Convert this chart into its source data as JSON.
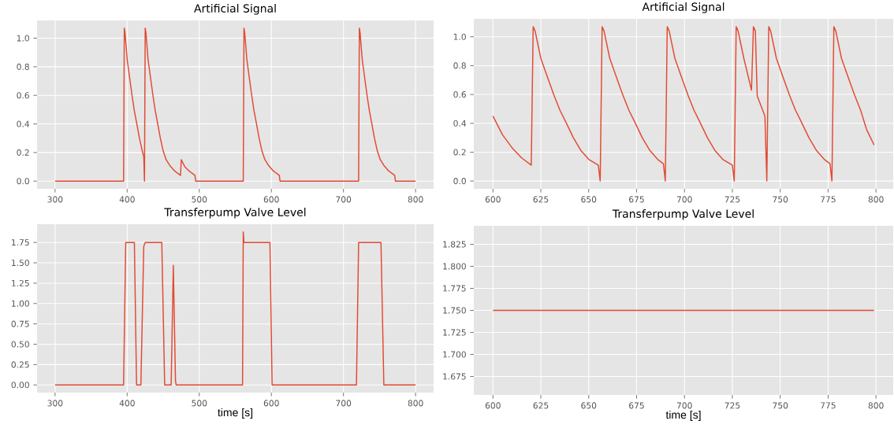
{
  "chart_data": [
    {
      "type": "line",
      "title": "Artificial Signal",
      "xlim": [
        275,
        825
      ],
      "ylim": [
        -0.054,
        1.124
      ],
      "grid": true,
      "xticks": [
        300,
        400,
        500,
        600,
        700,
        800
      ],
      "yticks": [
        {
          "value": 0,
          "label": "0.0"
        },
        {
          "value": 0.2,
          "label": "0.2"
        },
        {
          "value": 0.4,
          "label": "0.4"
        },
        {
          "value": 0.6,
          "label": "0.6"
        },
        {
          "value": 0.8,
          "label": "0.8"
        },
        {
          "value": 1,
          "label": "1.0"
        }
      ],
      "series": [
        {
          "color": "#e24a33",
          "x": [
            300,
            395,
            396,
            397,
            400,
            404,
            407,
            410,
            413,
            417,
            421,
            423,
            424,
            425,
            426,
            429,
            433,
            436,
            439,
            442,
            446,
            450,
            454,
            459,
            465,
            470,
            474,
            475,
            480,
            485,
            490,
            494,
            495,
            561,
            562,
            563,
            566,
            570,
            573,
            576,
            579,
            583,
            587,
            591,
            596,
            602,
            607,
            611,
            612,
            721,
            722,
            723,
            726,
            730,
            733,
            736,
            739,
            743,
            747,
            751,
            756,
            762,
            767,
            771,
            772,
            800
          ],
          "values": [
            0,
            0,
            1.07,
            1.04,
            0.85,
            0.7,
            0.59,
            0.49,
            0.41,
            0.3,
            0.21,
            0.17,
            0,
            1.07,
            1.04,
            0.85,
            0.7,
            0.59,
            0.49,
            0.41,
            0.3,
            0.21,
            0.15,
            0.11,
            0.075,
            0.055,
            0.04,
            0.15,
            0.1,
            0.075,
            0.055,
            0.04,
            0,
            0,
            1.07,
            1.04,
            0.85,
            0.7,
            0.59,
            0.49,
            0.41,
            0.3,
            0.21,
            0.15,
            0.11,
            0.075,
            0.055,
            0.04,
            0,
            0,
            1.07,
            1.04,
            0.85,
            0.7,
            0.59,
            0.49,
            0.41,
            0.3,
            0.21,
            0.15,
            0.11,
            0.075,
            0.055,
            0.04,
            0,
            0
          ]
        }
      ]
    },
    {
      "type": "line",
      "title": "Artificial Signal",
      "xlim": [
        590,
        809
      ],
      "ylim": [
        -0.054,
        1.124
      ],
      "grid": true,
      "xticks": [
        600,
        625,
        650,
        675,
        700,
        725,
        750,
        775,
        800
      ],
      "yticks": [
        {
          "value": 0,
          "label": "0.0"
        },
        {
          "value": 0.2,
          "label": "0.2"
        },
        {
          "value": 0.4,
          "label": "0.4"
        },
        {
          "value": 0.6,
          "label": "0.6"
        },
        {
          "value": 0.8,
          "label": "0.8"
        },
        {
          "value": 1,
          "label": "1.0"
        }
      ],
      "series": [
        {
          "color": "#e24a33",
          "x": [
            600,
            605,
            610,
            615,
            620,
            621,
            622,
            625,
            629,
            632,
            635,
            638,
            642,
            646,
            650,
            655,
            656,
            657,
            658,
            661,
            665,
            668,
            671,
            674,
            678,
            682,
            686,
            689,
            690,
            691,
            692,
            695,
            699,
            702,
            705,
            708,
            712,
            716,
            720,
            725,
            726,
            727,
            728,
            731,
            735,
            736,
            737,
            738,
            742,
            743,
            744,
            745,
            748,
            752,
            755,
            758,
            761,
            765,
            769,
            773,
            776,
            777,
            778,
            779,
            782,
            786,
            789,
            792,
            795,
            799
          ],
          "values": [
            0.45,
            0.32,
            0.23,
            0.16,
            0.11,
            1.07,
            1.04,
            0.85,
            0.7,
            0.59,
            0.49,
            0.41,
            0.3,
            0.21,
            0.15,
            0.11,
            0,
            1.07,
            1.04,
            0.85,
            0.7,
            0.59,
            0.49,
            0.41,
            0.3,
            0.21,
            0.15,
            0.12,
            0,
            1.07,
            1.04,
            0.85,
            0.7,
            0.59,
            0.49,
            0.41,
            0.3,
            0.21,
            0.15,
            0.11,
            0,
            1.07,
            1.04,
            0.85,
            0.63,
            1.07,
            1.04,
            0.59,
            0.45,
            0,
            1.07,
            1.04,
            0.85,
            0.7,
            0.59,
            0.49,
            0.41,
            0.3,
            0.21,
            0.15,
            0.12,
            0,
            1.07,
            1.04,
            0.85,
            0.7,
            0.59,
            0.49,
            0.36,
            0.25
          ]
        }
      ]
    },
    {
      "type": "line",
      "title": "Transferpump Valve Level",
      "xlabel": "time [s]",
      "xlim": [
        275,
        825
      ],
      "ylim": [
        -0.094,
        1.974
      ],
      "grid": true,
      "xticks": [
        300,
        400,
        500,
        600,
        700,
        800
      ],
      "yticks": [
        {
          "value": 0,
          "label": "0.00"
        },
        {
          "value": 0.25,
          "label": "0.25"
        },
        {
          "value": 0.5,
          "label": "0.50"
        },
        {
          "value": 0.75,
          "label": "0.75"
        },
        {
          "value": 1,
          "label": "1.00"
        },
        {
          "value": 1.25,
          "label": "1.25"
        },
        {
          "value": 1.5,
          "label": "1.50"
        },
        {
          "value": 1.75,
          "label": "1.75"
        }
      ],
      "series": [
        {
          "color": "#e24a33",
          "x": [
            300,
            395,
            398,
            410,
            413,
            419,
            423,
            425,
            448,
            452,
            461,
            464,
            467,
            468,
            560,
            561,
            562,
            598,
            601,
            718,
            721,
            752,
            756,
            800
          ],
          "values": [
            0,
            0,
            1.75,
            1.75,
            0,
            0,
            1.7,
            1.75,
            1.75,
            0,
            0,
            1.47,
            0.05,
            0,
            0,
            1.88,
            1.75,
            1.75,
            0,
            0,
            1.75,
            1.75,
            0,
            0
          ]
        }
      ]
    },
    {
      "type": "line",
      "title": "Transferpump Valve Level",
      "xlabel": "time [s]",
      "xlim": [
        590,
        809
      ],
      "ylim": [
        1.654,
        1.846
      ],
      "grid": true,
      "xticks": [
        600,
        625,
        650,
        675,
        700,
        725,
        750,
        775,
        800
      ],
      "yticks": [
        1.675,
        {
          "value": 1.7,
          "label": "1.700"
        },
        1.725,
        {
          "value": 1.75,
          "label": "1.750"
        },
        1.775,
        {
          "value": 1.8,
          "label": "1.800"
        },
        1.825
      ],
      "series": [
        {
          "color": "#e24a33",
          "x": [
            600,
            799
          ],
          "values": [
            1.75,
            1.75
          ]
        }
      ]
    }
  ]
}
